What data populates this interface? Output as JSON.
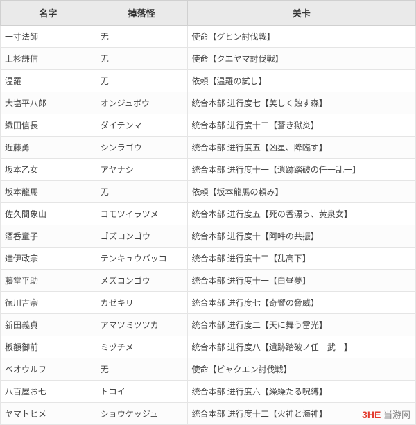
{
  "table": {
    "columns": [
      {
        "label": "名字",
        "width": "23%"
      },
      {
        "label": "掉落怪",
        "width": "22%"
      },
      {
        "label": "关卡",
        "width": "55%"
      }
    ],
    "rows": [
      {
        "name": "一寸法師",
        "drop": "无",
        "stage": "使命【グヒン討伐戦】"
      },
      {
        "name": "上杉謙信",
        "drop": "无",
        "stage": "使命【クエヤマ討伐戦】"
      },
      {
        "name": "温羅",
        "drop": "无",
        "stage": "依頼【温羅の試し】"
      },
      {
        "name": "大塩平八郎",
        "drop": "オンジュボウ",
        "stage": "统合本部 进行度七【美しく蝕す森】"
      },
      {
        "name": "織田信長",
        "drop": "ダイテンマ",
        "stage": "统合本部 进行度十二【蒼き獄炎】"
      },
      {
        "name": "近藤勇",
        "drop": "シンラゴウ",
        "stage": "统合本部 进行度五【凶星、降臨す】"
      },
      {
        "name": "坂本乙女",
        "drop": "アヤナシ",
        "stage": "统合本部 进行度十一【遺跡踏破の任一乱一】"
      },
      {
        "name": "坂本龍馬",
        "drop": "无",
        "stage": "依頼【坂本龍馬の頼み】"
      },
      {
        "name": "佐久間象山",
        "drop": "ヨモツイラツメ",
        "stage": "统合本部 进行度五【死の香漂う、黄泉女】"
      },
      {
        "name": "酒呑童子",
        "drop": "ゴズコンゴウ",
        "stage": "统合本部 进行度十【阿吽の共振】"
      },
      {
        "name": "達伊政宗",
        "drop": "テンキュウバッコ",
        "stage": "统合本部 进行度十二【乱高下】"
      },
      {
        "name": "藤堂平助",
        "drop": "メズコンゴウ",
        "stage": "统合本部 进行度十一【白昼夢】"
      },
      {
        "name": "徳川吉宗",
        "drop": "カゼキリ",
        "stage": "统合本部 进行度七【奇響の脅威】"
      },
      {
        "name": "新田義貞",
        "drop": "アマツミツツカ",
        "stage": "统合本部 进行度二【天に舞う雷光】"
      },
      {
        "name": "板額御前",
        "drop": "ミヅチメ",
        "stage": "统合本部 进行度八【遺跡踏破ノ任一武一】"
      },
      {
        "name": "ベオウルフ",
        "drop": "无",
        "stage": "使命【ビャクエン討伐戦】"
      },
      {
        "name": "八百屋お七",
        "drop": "トコイ",
        "stage": "统合本部 进行度六【繰繰たる呪縛】"
      },
      {
        "name": "ヤマトヒメ",
        "drop": "ショウケッジュ",
        "stage": "统合本部 进行度十二【火神と海神】"
      }
    ],
    "header_bg": "#eaeaea",
    "border_color": "#e5e5e5",
    "text_color": "#444444",
    "font_size": 12
  },
  "watermark": {
    "brand": "3HE",
    "site": "当游网",
    "brand_color": "#e33b2e",
    "site_color": "#888888"
  }
}
